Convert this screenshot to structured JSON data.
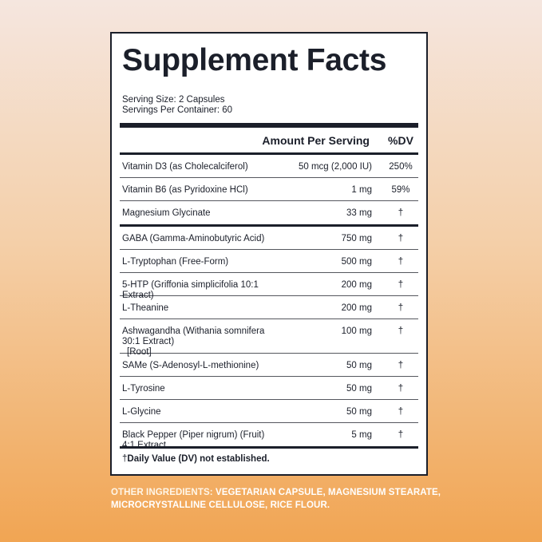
{
  "panel": {
    "title": "Supplement Facts",
    "serving_size": "Serving Size: 2 Capsules",
    "servings_per_container": "Servings Per Container: 60",
    "header_amount": "Amount Per Serving",
    "header_dv": "%DV"
  },
  "ingredients": [
    {
      "name": "Vitamin D3 (as Cholecalciferol)",
      "amount": "50 mcg (2,000 IU)",
      "dv": "250%"
    },
    {
      "name": "Vitamin B6 (as Pyridoxine HCl)",
      "amount": "1 mg",
      "dv": "59%"
    },
    {
      "name": "Magnesium Glycinate",
      "amount": "33 mg",
      "dv": "†"
    },
    {
      "name": "GABA (Gamma-Aminobutyric Acid)",
      "amount": "750 mg",
      "dv": "†"
    },
    {
      "name": "L-Tryptophan (Free-Form)",
      "amount": "500 mg",
      "dv": "†"
    },
    {
      "name": "5-HTP (Griffonia simplicifolia 10:1 Extract)",
      "amount": "200 mg",
      "dv": "†"
    },
    {
      "name": "L-Theanine",
      "amount": "200 mg",
      "dv": "†"
    },
    {
      "name": "Ashwagandha (Withania somnifera 30:1 Extract)",
      "name_line2": "[Root]",
      "amount": "100 mg",
      "dv": "†"
    },
    {
      "name": "SAMe (S-Adenosyl-L-methionine)",
      "amount": "50 mg",
      "dv": "†"
    },
    {
      "name": "L-Tyrosine",
      "amount": "50 mg",
      "dv": "†"
    },
    {
      "name": "L-Glycine",
      "amount": "50 mg",
      "dv": "†"
    },
    {
      "name": "Black Pepper (Piper nigrum) (Fruit) 4:1 Extract",
      "amount": "5 mg",
      "dv": "†"
    }
  ],
  "footnote": {
    "dagger": "†",
    "text": "Daily Value (DV) not established."
  },
  "other_ingredients": {
    "label": "OTHER INGREDIENTS:",
    "text": " VEGETARIAN CAPSULE, MAGNESIUM STEARATE, MICROCRYSTALLINE CELLULOSE, RICE FLOUR."
  }
}
